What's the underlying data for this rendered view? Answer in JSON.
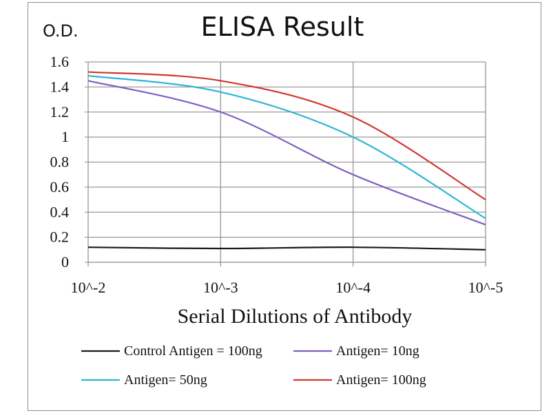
{
  "chart_data": {
    "type": "line",
    "title": "ELISA Result",
    "ylabel": "O.D.",
    "xlabel": "Serial Dilutions  of Antibody",
    "categories": [
      "10^-2",
      "10^-3",
      "10^-4",
      "10^-5"
    ],
    "y_ticks": [
      "0",
      "0.2",
      "0.4",
      "0.6",
      "0.8",
      "1",
      "1.2",
      "1.4",
      "1.6"
    ],
    "ylim": [
      0,
      1.6
    ],
    "grid": true,
    "legend_position": "bottom",
    "series": [
      {
        "name": "Control Antigen = 100ng",
        "color": "#1a1a1a",
        "values": [
          0.12,
          0.11,
          0.12,
          0.1
        ]
      },
      {
        "name": "Antigen= 10ng",
        "color": "#7f5fbf",
        "values": [
          1.45,
          1.2,
          0.7,
          0.3
        ]
      },
      {
        "name": "Antigen= 50ng",
        "color": "#2cb5d6",
        "values": [
          1.49,
          1.36,
          1.0,
          0.35
        ]
      },
      {
        "name": "Antigen= 100ng",
        "color": "#d2362f",
        "values": [
          1.52,
          1.45,
          1.16,
          0.5
        ]
      }
    ]
  }
}
